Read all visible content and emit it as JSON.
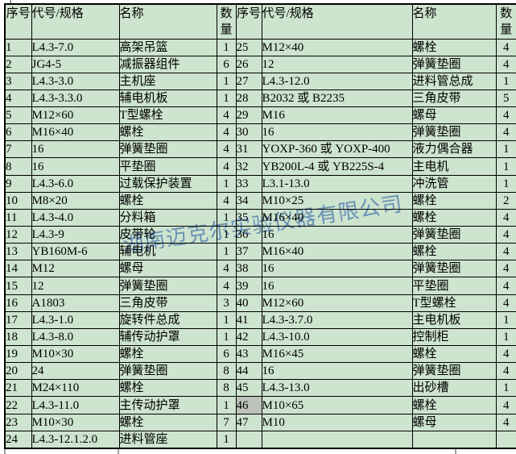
{
  "colors": {
    "page_bg": "#ffffff",
    "table_bg": "#cde4ce",
    "selected_cell_bg": "#bdc3bb",
    "border": "#000000",
    "watermark": "#6f93dd"
  },
  "watermark": {
    "text": "湖南迈克尔实验仪器有限公司"
  },
  "table": {
    "selected_seq": "46",
    "headers": {
      "seq": "序号",
      "code": "代号/规格",
      "name": "名称",
      "qty": "数量"
    },
    "left_rows": [
      {
        "seq": "1",
        "code": "L4.3-7.0",
        "name": "高架吊篮",
        "qty": "1"
      },
      {
        "seq": "2",
        "code": "JG4-5",
        "name": "减振器组件",
        "qty": "6"
      },
      {
        "seq": "3",
        "code": "L4.3-3.0",
        "name": "主机座",
        "qty": "1"
      },
      {
        "seq": "4",
        "code": "L4.3-3.3.0",
        "name": "辅电机板",
        "qty": "1"
      },
      {
        "seq": "5",
        "code": "M12×60",
        "name": "T型螺栓",
        "qty": "4"
      },
      {
        "seq": "6",
        "code": "M16×40",
        "name": "螺栓",
        "qty": "4"
      },
      {
        "seq": "7",
        "code": "16",
        "name": "弹簧垫圈",
        "qty": "4"
      },
      {
        "seq": "8",
        "code": "16",
        "name": "平垫圈",
        "qty": "4"
      },
      {
        "seq": "9",
        "code": "L4.3-6.0",
        "name": "过载保护装置",
        "qty": "1"
      },
      {
        "seq": "10",
        "code": "M8×20",
        "name": "螺栓",
        "qty": "4"
      },
      {
        "seq": "11",
        "code": "L4.3-4.0",
        "name": "分料箱",
        "qty": "1"
      },
      {
        "seq": "12",
        "code": "L4.3-9",
        "name": "皮带轮",
        "qty": "1"
      },
      {
        "seq": "13",
        "code": "YB160M-6",
        "name": "辅电机",
        "qty": "1"
      },
      {
        "seq": "14",
        "code": "M12",
        "name": "螺母",
        "qty": "4"
      },
      {
        "seq": "15",
        "code": "12",
        "name": "弹簧垫圈",
        "qty": "4"
      },
      {
        "seq": "16",
        "code": "A1803",
        "name": "三角皮带",
        "qty": "3"
      },
      {
        "seq": "17",
        "code": "L4.3-1.0",
        "name": "旋转件总成",
        "qty": "1"
      },
      {
        "seq": "18",
        "code": "L4.3-8.0",
        "name": "辅传动护罩",
        "qty": "1"
      },
      {
        "seq": "19",
        "code": "M10×30",
        "name": "螺栓",
        "qty": "6"
      },
      {
        "seq": "20",
        "code": "24",
        "name": "弹簧垫圈",
        "qty": "8"
      },
      {
        "seq": "21",
        "code": "M24×110",
        "name": "螺栓",
        "qty": "8"
      },
      {
        "seq": "22",
        "code": "L4.3-11.0",
        "name": "主传动护罩",
        "qty": "1"
      },
      {
        "seq": "23",
        "code": "M10×30",
        "name": "螺栓",
        "qty": "7"
      },
      {
        "seq": "24",
        "code": "L4.3-12.1.2.0",
        "name": "进料管座",
        "qty": "1"
      }
    ],
    "right_rows": [
      {
        "seq": "25",
        "code": "M12×40",
        "name": "螺栓",
        "qty": "4"
      },
      {
        "seq": "26",
        "code": "12",
        "name": "弹簧垫圈",
        "qty": "4"
      },
      {
        "seq": "27",
        "code": "L4.3-12.0",
        "name": "进料管总成",
        "qty": "1"
      },
      {
        "seq": "28",
        "code": "B2032 或 B2235",
        "name": "三角皮带",
        "qty": "5"
      },
      {
        "seq": "29",
        "code": "M16",
        "name": "螺母",
        "qty": "4"
      },
      {
        "seq": "30",
        "code": "16",
        "name": "弹簧垫圈",
        "qty": "4"
      },
      {
        "seq": "31",
        "code": "YOXP-360 或 YOXP-400",
        "name": "液力偶合器",
        "qty": "1"
      },
      {
        "seq": "32",
        "code": "YB200L-4 或 YB225S-4",
        "name": "主电机",
        "qty": "1"
      },
      {
        "seq": "33",
        "code": "L3.1-13.0",
        "name": "冲洗管",
        "qty": "1"
      },
      {
        "seq": "34",
        "code": "M10×25",
        "name": "螺栓",
        "qty": "2"
      },
      {
        "seq": "35",
        "code": "M16×40",
        "name": "螺栓",
        "qty": "4"
      },
      {
        "seq": "36",
        "code": "16",
        "name": "弹簧垫圈",
        "qty": "4"
      },
      {
        "seq": "37",
        "code": "M16×40",
        "name": "螺栓",
        "qty": "4"
      },
      {
        "seq": "38",
        "code": "16",
        "name": "弹簧垫圈",
        "qty": "4"
      },
      {
        "seq": "39",
        "code": "16",
        "name": "平垫圈",
        "qty": "4"
      },
      {
        "seq": "40",
        "code": "M12×60",
        "name": "T型螺栓",
        "qty": "4"
      },
      {
        "seq": "41",
        "code": "L4.3-3.7.0",
        "name": "主电机板",
        "qty": "1"
      },
      {
        "seq": "42",
        "code": "L4.3-10.0",
        "name": "控制柜",
        "qty": "1"
      },
      {
        "seq": "43",
        "code": "M16×45",
        "name": "螺栓",
        "qty": "4"
      },
      {
        "seq": "44",
        "code": "16",
        "name": "弹簧垫圈",
        "qty": "4"
      },
      {
        "seq": "45",
        "code": "L4.3-13.0",
        "name": "出砂槽",
        "qty": "1"
      },
      {
        "seq": "46",
        "code": "M10×65",
        "name": "螺栓",
        "qty": "4"
      },
      {
        "seq": "47",
        "code": "M10",
        "name": "螺母",
        "qty": "4"
      },
      {
        "seq": "",
        "code": "",
        "name": "",
        "qty": ""
      }
    ]
  }
}
